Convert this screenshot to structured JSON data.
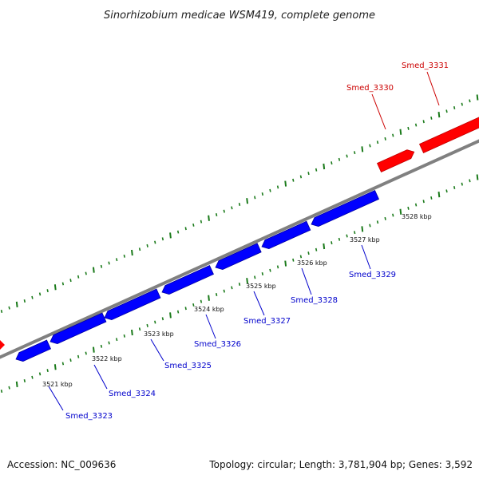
{
  "title": "Sinorhizobium medicae WSM419, complete genome",
  "footer": {
    "accession": "Accession: NC_009636",
    "summary": "Topology: circular; Length: 3,781,904 bp; Genes: 3,592"
  },
  "colors": {
    "forward_gene": "#ff0000",
    "reverse_gene": "#0000ff",
    "backbone": "#808080",
    "ticks": "#1a7a1a",
    "reverse_label": "#0000cc",
    "forward_label": "#cc0000"
  },
  "scale": {
    "unit": "kbp",
    "ticks": [
      "3521 kbp",
      "3522 kbp",
      "3523 kbp",
      "3524 kbp",
      "3525 kbp",
      "3526 kbp",
      "3527 kbp",
      "3528 kbp"
    ]
  },
  "genes": [
    {
      "name": "Smed_3323",
      "strand": "reverse"
    },
    {
      "name": "Smed_3324",
      "strand": "reverse"
    },
    {
      "name": "Smed_3325",
      "strand": "reverse"
    },
    {
      "name": "Smed_3326",
      "strand": "reverse"
    },
    {
      "name": "Smed_3327",
      "strand": "reverse"
    },
    {
      "name": "Smed_3328",
      "strand": "reverse"
    },
    {
      "name": "Smed_3329",
      "strand": "reverse"
    },
    {
      "name": "Smed_3330",
      "strand": "forward"
    },
    {
      "name": "Smed_3331",
      "strand": "forward"
    }
  ]
}
